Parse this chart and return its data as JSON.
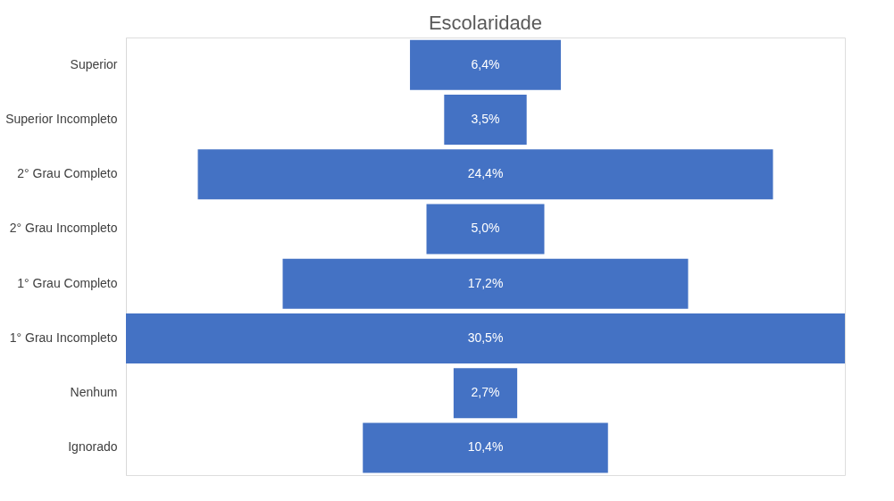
{
  "chart_data": {
    "type": "other",
    "title": "Escolaridade",
    "categories": [
      "Superior",
      "Superior Incompleto",
      "2° Grau Completo",
      "2° Grau Incompleto",
      "1° Grau Completo",
      "1° Grau Incompleto",
      "Nenhum",
      "Ignorado"
    ],
    "values": [
      6.4,
      3.5,
      24.4,
      5.0,
      17.2,
      30.5,
      2.7,
      10.4
    ],
    "value_labels": [
      "6,4%",
      "3,5%",
      "24,4%",
      "5,0%",
      "17,2%",
      "30,5%",
      "2,7%",
      "10,4%"
    ],
    "color": "#4472c4"
  }
}
